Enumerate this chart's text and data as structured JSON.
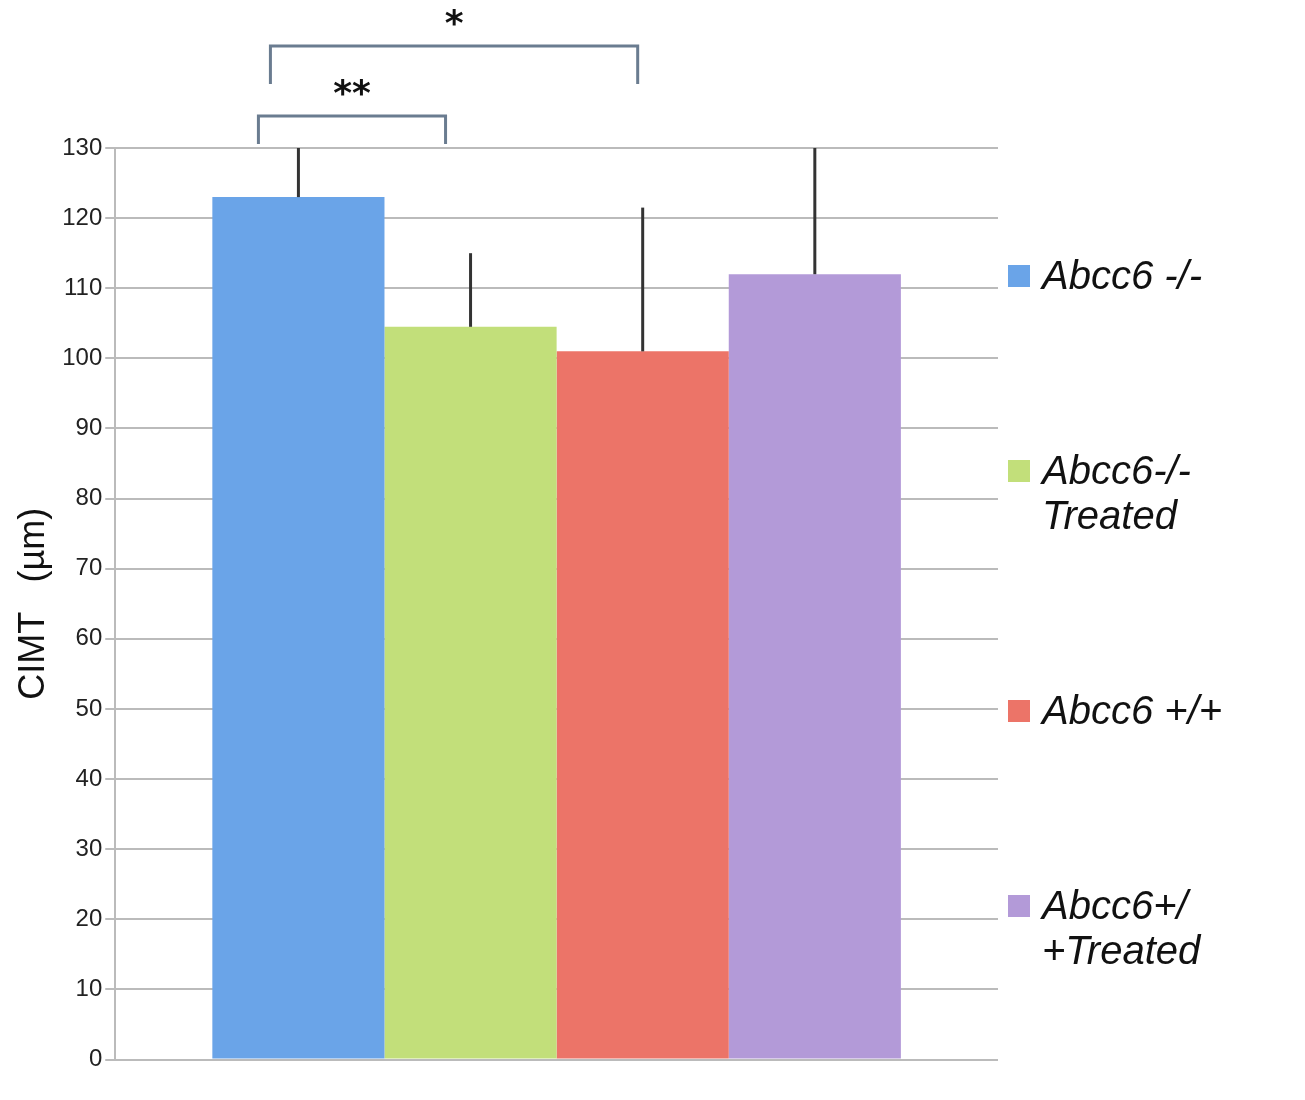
{
  "chart_data": {
    "type": "bar",
    "ylabel": "CIMT   (µm)",
    "categories": [
      null
    ],
    "series": [
      {
        "name": "Abcc6 -/-",
        "color": "#6aa4e8",
        "values": [
          123
        ],
        "errors": [
          [
            123,
            130
          ]
        ]
      },
      {
        "name": "Abcc6-/- Treated",
        "color": "#c2df7a",
        "values": [
          104.5
        ],
        "errors": [
          [
            104.5,
            115
          ]
        ]
      },
      {
        "name": "Abcc6 +/+",
        "color": "#ec7468",
        "values": [
          101
        ],
        "errors": [
          [
            101,
            121.5
          ]
        ]
      },
      {
        "name": "Abcc6+/ +Treated",
        "color": "#b39ad8",
        "values": [
          112
        ],
        "errors": [
          [
            112,
            130
          ]
        ]
      }
    ],
    "ylim": [
      0,
      130
    ],
    "yticks": [
      0,
      10,
      20,
      30,
      40,
      50,
      60,
      70,
      80,
      90,
      100,
      110,
      120,
      130
    ],
    "grid": "y",
    "legend": "right",
    "annotations": [
      "**",
      "*"
    ]
  }
}
